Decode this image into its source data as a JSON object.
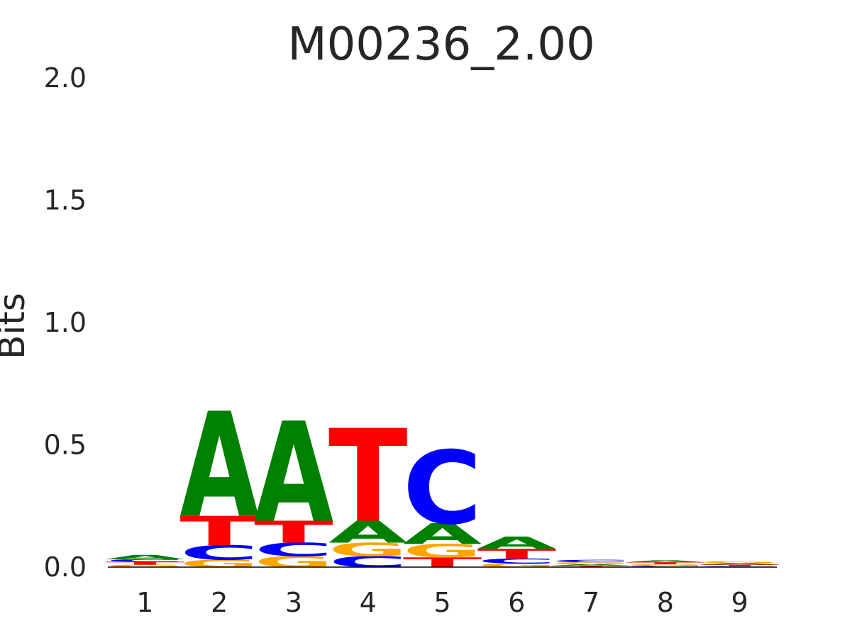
{
  "chart_data": {
    "type": "sequence-logo",
    "title": "M00236_2.00",
    "xlabel": "",
    "ylabel": "Bits",
    "ylim": [
      0,
      2.0
    ],
    "yticks": [
      "0.0",
      "0.5",
      "1.0",
      "1.5",
      "2.0"
    ],
    "xticks": [
      "1",
      "2",
      "3",
      "4",
      "5",
      "6",
      "7",
      "8",
      "9"
    ],
    "grid": false,
    "letter_colors": {
      "A": "#008000",
      "C": "#0000ff",
      "G": "#ffa500",
      "T": "#ff0000"
    },
    "positions": [
      {
        "pos": 1,
        "stack": [
          {
            "letter": "G",
            "bits": 0.01
          },
          {
            "letter": "T",
            "bits": 0.012
          },
          {
            "letter": "C",
            "bits": 0.01
          },
          {
            "letter": "A",
            "bits": 0.018
          }
        ]
      },
      {
        "pos": 2,
        "stack": [
          {
            "letter": "G",
            "bits": 0.03
          },
          {
            "letter": "C",
            "bits": 0.06
          },
          {
            "letter": "T",
            "bits": 0.12
          },
          {
            "letter": "A",
            "bits": 0.43
          }
        ]
      },
      {
        "pos": 3,
        "stack": [
          {
            "letter": "G",
            "bits": 0.045
          },
          {
            "letter": "C",
            "bits": 0.055
          },
          {
            "letter": "T",
            "bits": 0.09
          },
          {
            "letter": "A",
            "bits": 0.41
          }
        ]
      },
      {
        "pos": 4,
        "stack": [
          {
            "letter": "C",
            "bits": 0.045
          },
          {
            "letter": "G",
            "bits": 0.055
          },
          {
            "letter": "A",
            "bits": 0.09
          },
          {
            "letter": "T",
            "bits": 0.38
          }
        ]
      },
      {
        "pos": 5,
        "stack": [
          {
            "letter": "T",
            "bits": 0.04
          },
          {
            "letter": "G",
            "bits": 0.055
          },
          {
            "letter": "A",
            "bits": 0.085
          },
          {
            "letter": "C",
            "bits": 0.3
          }
        ]
      },
      {
        "pos": 6,
        "stack": [
          {
            "letter": "G",
            "bits": 0.015
          },
          {
            "letter": "C",
            "bits": 0.02
          },
          {
            "letter": "T",
            "bits": 0.04
          },
          {
            "letter": "A",
            "bits": 0.05
          }
        ]
      },
      {
        "pos": 7,
        "stack": [
          {
            "letter": "T",
            "bits": 0.006
          },
          {
            "letter": "A",
            "bits": 0.006
          },
          {
            "letter": "G",
            "bits": 0.008
          },
          {
            "letter": "C",
            "bits": 0.01
          }
        ]
      },
      {
        "pos": 8,
        "stack": [
          {
            "letter": "C",
            "bits": 0.005
          },
          {
            "letter": "G",
            "bits": 0.007
          },
          {
            "letter": "T",
            "bits": 0.008
          },
          {
            "letter": "A",
            "bits": 0.008
          }
        ]
      },
      {
        "pos": 9,
        "stack": [
          {
            "letter": "C",
            "bits": 0.004
          },
          {
            "letter": "T",
            "bits": 0.006
          },
          {
            "letter": "A",
            "bits": 0.006
          },
          {
            "letter": "G",
            "bits": 0.008
          }
        ]
      }
    ]
  }
}
